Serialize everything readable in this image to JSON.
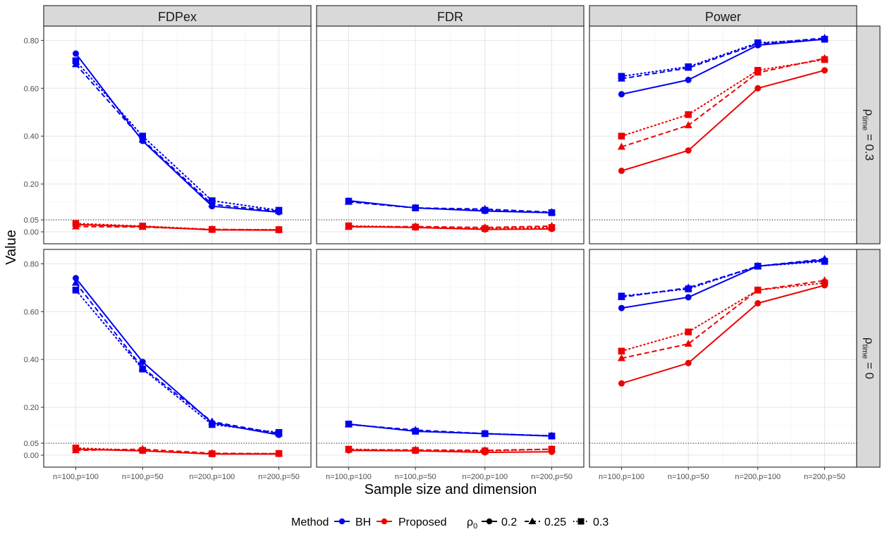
{
  "chart_data": {
    "type": "line",
    "title": "",
    "xlabel": "Sample size and dimension",
    "ylabel": "Value",
    "categories": [
      "n=100,p=100",
      "n=100,p=50",
      "n=200,p=100",
      "n=200,p=50"
    ],
    "ylim": [
      -0.05,
      0.86
    ],
    "yticks": [
      0.0,
      0.05,
      0.2,
      0.4,
      0.6,
      0.8
    ],
    "ytick_labels": [
      "0.00",
      "0.05",
      "0.20",
      "0.40",
      "0.60",
      "0.80"
    ],
    "reference_line": 0.05,
    "columns": [
      "FDPex",
      "FDR",
      "Power"
    ],
    "rows": [
      {
        "label_base": "ρ",
        "label_sub": "time",
        "label_value": " = 0.3"
      },
      {
        "label_base": "ρ",
        "label_sub": "time",
        "label_value": " = 0"
      }
    ],
    "legend": {
      "method_title": "Method",
      "methods": [
        {
          "name": "BH",
          "color": "#0000ee"
        },
        {
          "name": "Proposed",
          "color": "#ee0000"
        }
      ],
      "rho_title_base": "ρ",
      "rho_title_sub": "0",
      "rho_levels": [
        {
          "label": "0.2",
          "shape": "circle",
          "linetype": "solid"
        },
        {
          "label": "0.25",
          "shape": "triangle",
          "linetype": "dashed"
        },
        {
          "label": "0.3",
          "shape": "square",
          "linetype": "dotted"
        }
      ]
    },
    "panels": [
      {
        "row": 0,
        "col": 0,
        "series": [
          {
            "method": "BH",
            "rho0": "0.2",
            "values": [
              0.745,
              0.38,
              0.107,
              0.082
            ]
          },
          {
            "method": "BH",
            "rho0": "0.25",
            "values": [
              0.7,
              0.385,
              0.115,
              0.086
            ]
          },
          {
            "method": "BH",
            "rho0": "0.3",
            "values": [
              0.715,
              0.4,
              0.13,
              0.09
            ]
          },
          {
            "method": "Proposed",
            "rho0": "0.2",
            "values": [
              0.03,
              0.022,
              0.008,
              0.007
            ]
          },
          {
            "method": "Proposed",
            "rho0": "0.25",
            "values": [
              0.022,
              0.02,
              0.01,
              0.008
            ]
          },
          {
            "method": "Proposed",
            "rho0": "0.3",
            "values": [
              0.035,
              0.024,
              0.01,
              0.009
            ]
          }
        ]
      },
      {
        "row": 0,
        "col": 1,
        "series": [
          {
            "method": "BH",
            "rho0": "0.2",
            "values": [
              0.13,
              0.1,
              0.087,
              0.08
            ]
          },
          {
            "method": "BH",
            "rho0": "0.25",
            "values": [
              0.125,
              0.1,
              0.095,
              0.082
            ]
          },
          {
            "method": "BH",
            "rho0": "0.3",
            "values": [
              0.128,
              0.1,
              0.09,
              0.08
            ]
          },
          {
            "method": "Proposed",
            "rho0": "0.2",
            "values": [
              0.022,
              0.018,
              0.01,
              0.012
            ]
          },
          {
            "method": "Proposed",
            "rho0": "0.25",
            "values": [
              0.02,
              0.022,
              0.018,
              0.024
            ]
          },
          {
            "method": "Proposed",
            "rho0": "0.3",
            "values": [
              0.025,
              0.02,
              0.014,
              0.018
            ]
          }
        ]
      },
      {
        "row": 0,
        "col": 2,
        "series": [
          {
            "method": "BH",
            "rho0": "0.2",
            "values": [
              0.575,
              0.635,
              0.78,
              0.805
            ]
          },
          {
            "method": "BH",
            "rho0": "0.25",
            "values": [
              0.64,
              0.685,
              0.785,
              0.81
            ]
          },
          {
            "method": "BH",
            "rho0": "0.3",
            "values": [
              0.65,
              0.69,
              0.79,
              0.805
            ]
          },
          {
            "method": "Proposed",
            "rho0": "0.2",
            "values": [
              0.255,
              0.34,
              0.6,
              0.675
            ]
          },
          {
            "method": "Proposed",
            "rho0": "0.25",
            "values": [
              0.355,
              0.445,
              0.665,
              0.725
            ]
          },
          {
            "method": "Proposed",
            "rho0": "0.3",
            "values": [
              0.4,
              0.49,
              0.675,
              0.72
            ]
          }
        ]
      },
      {
        "row": 1,
        "col": 0,
        "series": [
          {
            "method": "BH",
            "rho0": "0.2",
            "values": [
              0.74,
              0.39,
              0.135,
              0.085
            ]
          },
          {
            "method": "BH",
            "rho0": "0.25",
            "values": [
              0.72,
              0.365,
              0.14,
              0.09
            ]
          },
          {
            "method": "BH",
            "rho0": "0.3",
            "values": [
              0.69,
              0.36,
              0.128,
              0.095
            ]
          },
          {
            "method": "Proposed",
            "rho0": "0.2",
            "values": [
              0.025,
              0.018,
              0.005,
              0.005
            ]
          },
          {
            "method": "Proposed",
            "rho0": "0.25",
            "values": [
              0.02,
              0.025,
              0.008,
              0.006
            ]
          },
          {
            "method": "Proposed",
            "rho0": "0.3",
            "values": [
              0.03,
              0.02,
              0.006,
              0.007
            ]
          }
        ]
      },
      {
        "row": 1,
        "col": 1,
        "series": [
          {
            "method": "BH",
            "rho0": "0.2",
            "values": [
              0.13,
              0.1,
              0.09,
              0.08
            ]
          },
          {
            "method": "BH",
            "rho0": "0.25",
            "values": [
              0.128,
              0.105,
              0.09,
              0.081
            ]
          },
          {
            "method": "BH",
            "rho0": "0.3",
            "values": [
              0.13,
              0.1,
              0.09,
              0.08
            ]
          },
          {
            "method": "Proposed",
            "rho0": "0.2",
            "values": [
              0.02,
              0.018,
              0.012,
              0.014
            ]
          },
          {
            "method": "Proposed",
            "rho0": "0.25",
            "values": [
              0.022,
              0.022,
              0.02,
              0.025
            ]
          },
          {
            "method": "Proposed",
            "rho0": "0.3",
            "values": [
              0.025,
              0.02,
              0.018,
              0.025
            ]
          }
        ]
      },
      {
        "row": 1,
        "col": 2,
        "series": [
          {
            "method": "BH",
            "rho0": "0.2",
            "values": [
              0.615,
              0.66,
              0.79,
              0.815
            ]
          },
          {
            "method": "BH",
            "rho0": "0.25",
            "values": [
              0.66,
              0.7,
              0.79,
              0.82
            ]
          },
          {
            "method": "BH",
            "rho0": "0.3",
            "values": [
              0.665,
              0.695,
              0.79,
              0.81
            ]
          },
          {
            "method": "Proposed",
            "rho0": "0.2",
            "values": [
              0.3,
              0.385,
              0.635,
              0.71
            ]
          },
          {
            "method": "Proposed",
            "rho0": "0.25",
            "values": [
              0.405,
              0.465,
              0.69,
              0.73
            ]
          },
          {
            "method": "Proposed",
            "rho0": "0.3",
            "values": [
              0.435,
              0.515,
              0.69,
              0.72
            ]
          }
        ]
      }
    ]
  }
}
